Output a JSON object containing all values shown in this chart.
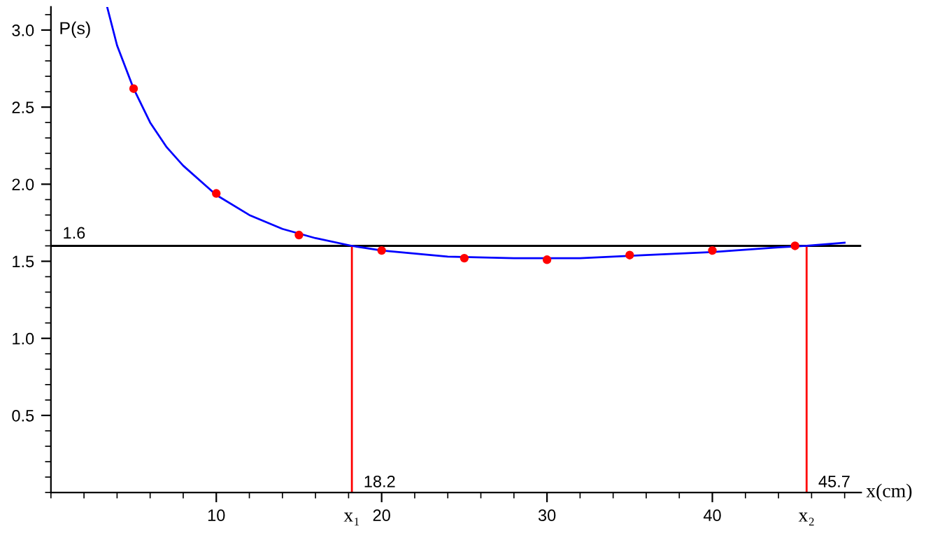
{
  "chart_data": {
    "type": "line",
    "xlabel": "x(cm)",
    "ylabel": "P(s)",
    "xlim": [
      0,
      49
    ],
    "ylim": [
      0,
      3.15
    ],
    "xticks": [
      10,
      20,
      30,
      40
    ],
    "yticks": [
      0.5,
      {
        "value": 1,
        "label": "1.0"
      },
      1.5,
      {
        "value": 2,
        "label": "2.0"
      },
      2.5,
      {
        "value": 3,
        "label": "3.0"
      }
    ],
    "grid": false,
    "marker": "none",
    "line_style": "solid",
    "series": [
      {
        "color": "#0000ff",
        "x": [
          3.4,
          4,
          5,
          6,
          7,
          8,
          10,
          12,
          14,
          16,
          18.2,
          20,
          24,
          28,
          32,
          36,
          40,
          44,
          45.7,
          48
        ],
        "values": [
          3.15,
          2.9,
          2.62,
          2.4,
          2.24,
          2.12,
          1.93,
          1.8,
          1.71,
          1.65,
          1.6,
          1.57,
          1.53,
          1.52,
          1.52,
          1.54,
          1.56,
          1.59,
          1.6,
          1.62
        ]
      },
      {
        "type": "scatter",
        "color": "#ff0000",
        "marker": "circle",
        "x": [
          5,
          10,
          15,
          20,
          25,
          30,
          35,
          40,
          45
        ],
        "values": [
          2.62,
          1.94,
          1.67,
          1.57,
          1.52,
          1.51,
          1.54,
          1.57,
          1.6
        ]
      }
    ],
    "ref_lines": [
      {
        "axis": "y",
        "value": 1.6,
        "label": "1.6",
        "color": "#000000"
      },
      {
        "axis": "x",
        "value": 18.2,
        "label": "18.2",
        "color": "#ff0000"
      },
      {
        "axis": "x",
        "value": 45.7,
        "label": "45.7",
        "color": "#ff0000"
      }
    ],
    "annotations": [
      {
        "text": "x₁",
        "x": 18.2,
        "y": 0
      },
      {
        "text": "x₂",
        "x": 45.7,
        "y": 0
      }
    ]
  }
}
